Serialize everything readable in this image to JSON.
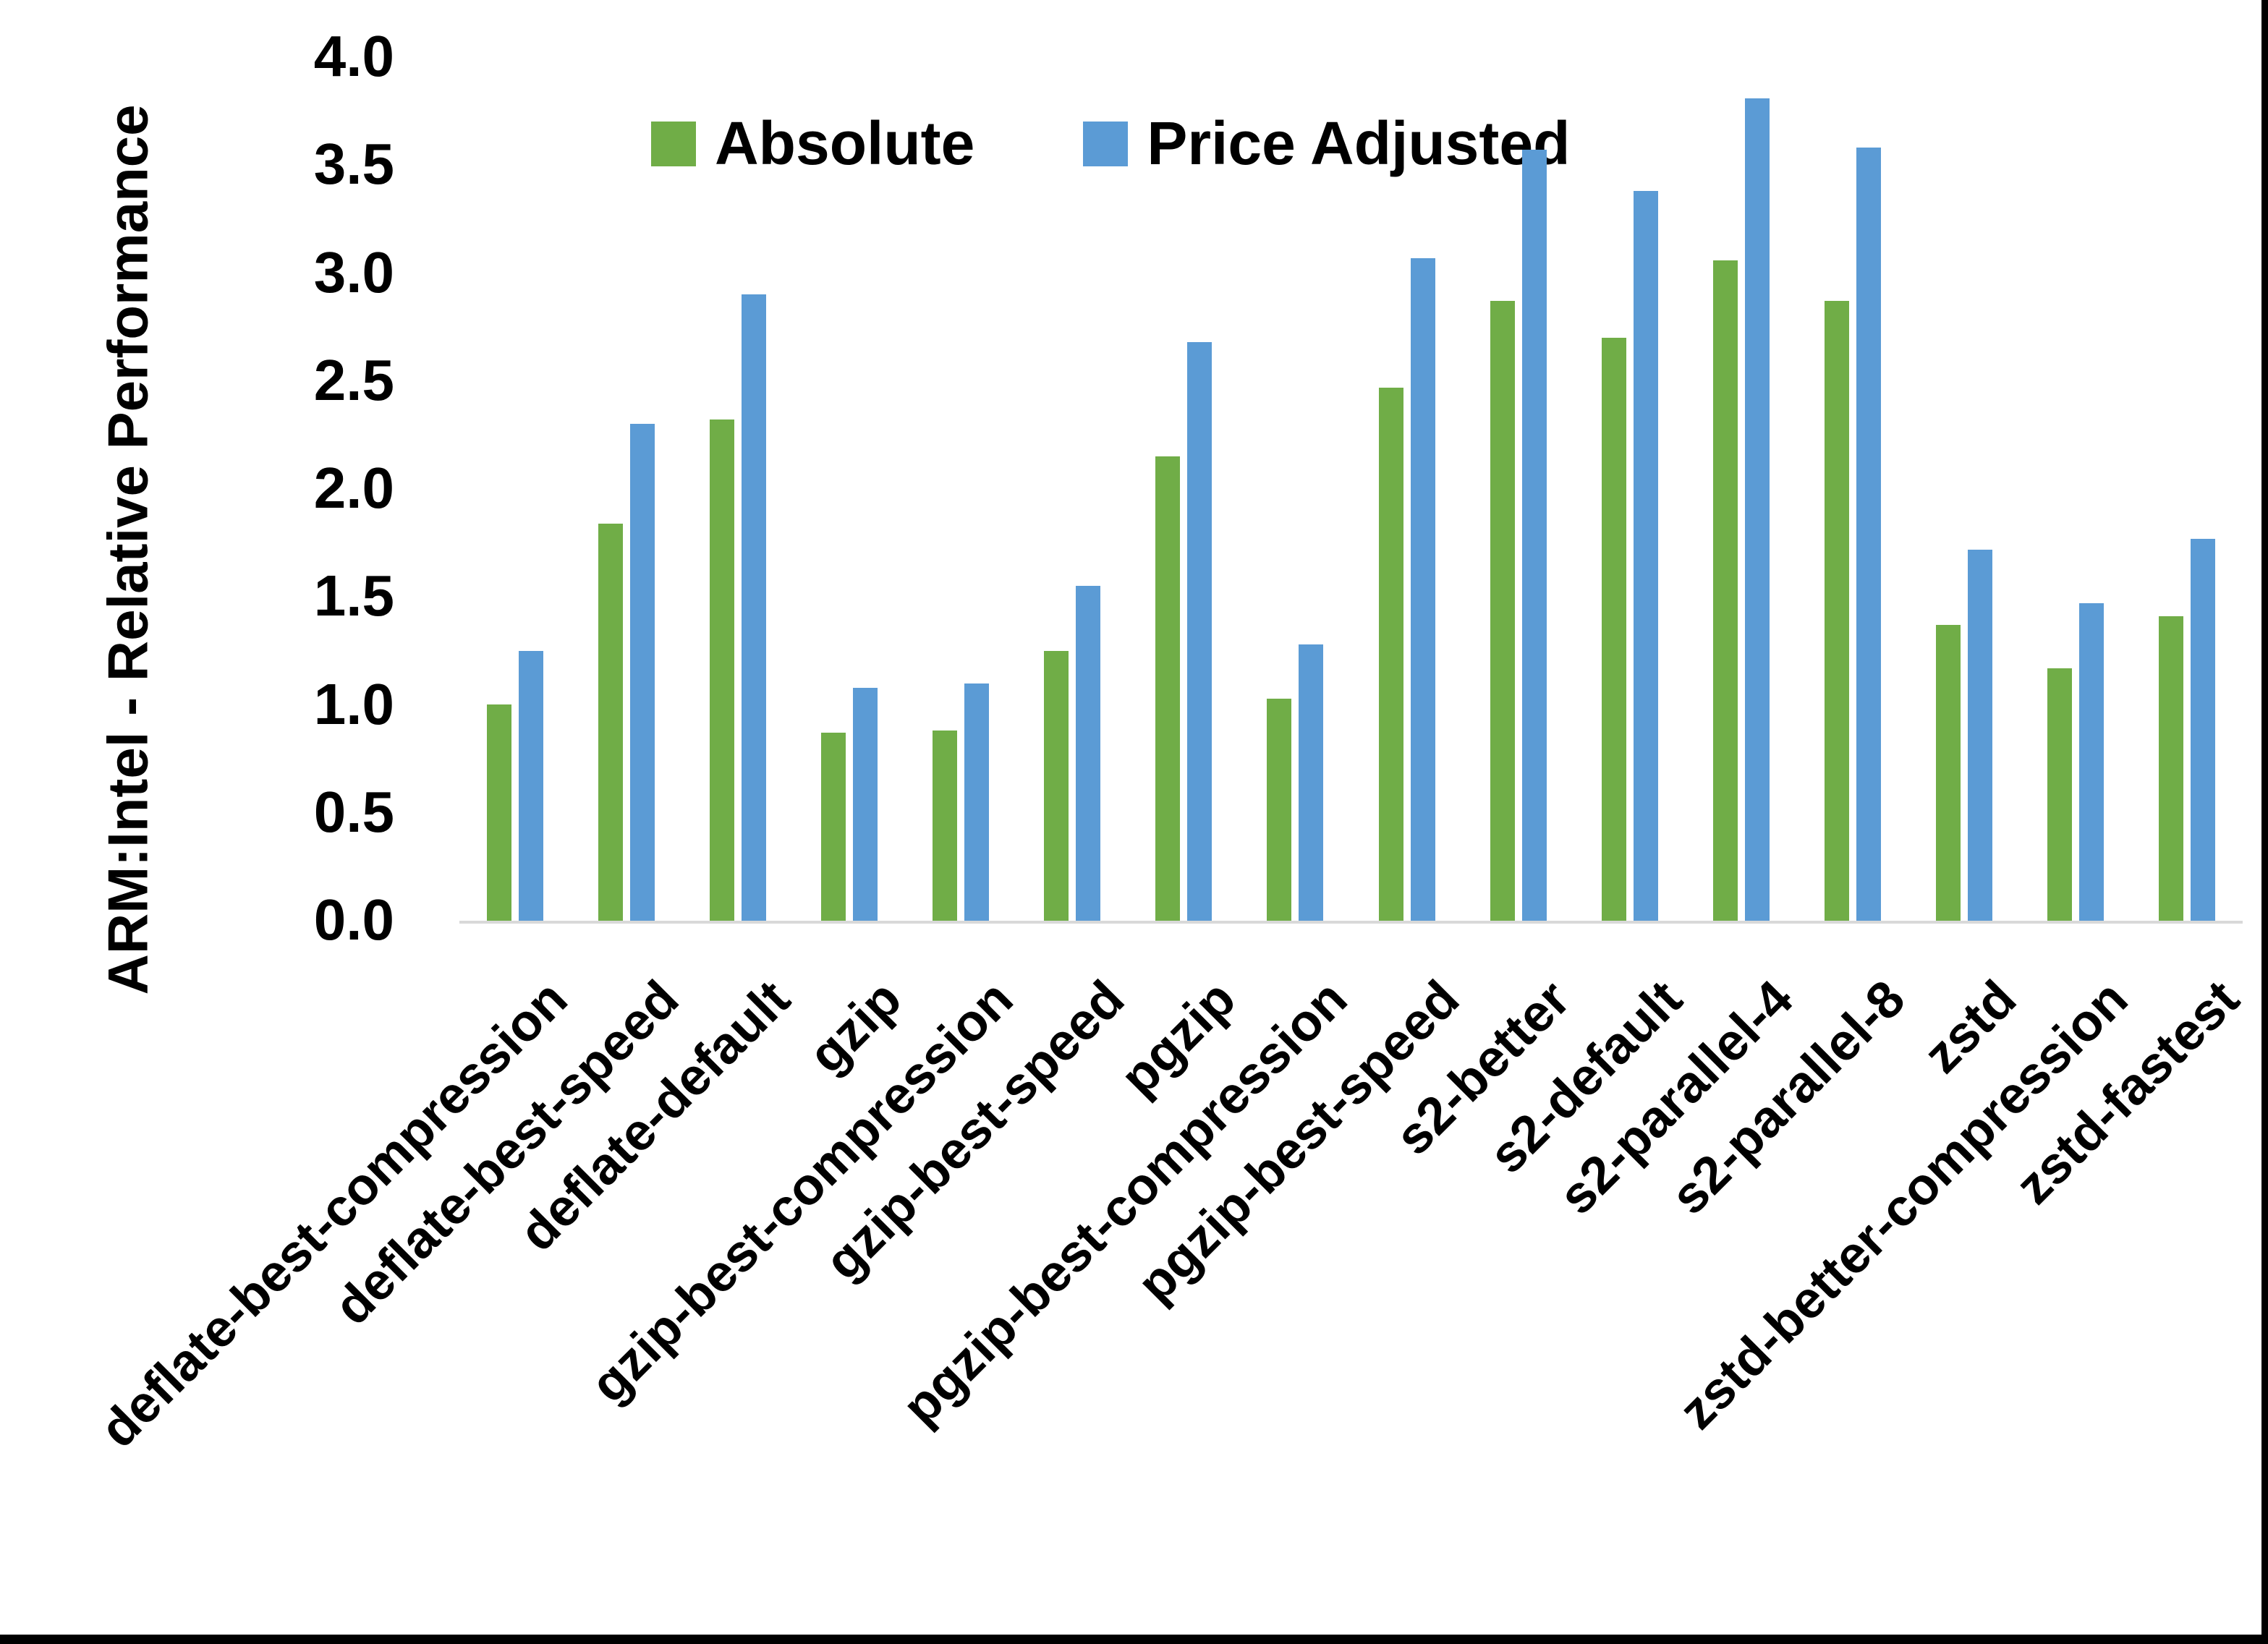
{
  "chart_data": {
    "type": "bar",
    "title": "",
    "ylabel": "ARM:Intel - Relative Performance",
    "xlabel": "",
    "ylim": [
      0.0,
      4.0
    ],
    "ytick_step": 0.5,
    "ytick_labels": [
      "0.0",
      "0.5",
      "1.0",
      "1.5",
      "2.0",
      "2.5",
      "3.0",
      "3.5",
      "4.0"
    ],
    "grid": false,
    "legend_position": "top-center",
    "baseline_color": "#D9D9D9",
    "categories": [
      "deflate-best-compression",
      "deflate-best-speed",
      "deflate-default",
      "gzip",
      "gzip-best-compression",
      "gzip-best-speed",
      "pgzip",
      "pgzip-best-compression",
      "pgzip-best-speed",
      "s2-better",
      "s2-default",
      "s2-parallel-4",
      "s2-parallel-8",
      "zstd",
      "zstd-better-compression",
      "zstd-fastest"
    ],
    "series": [
      {
        "name": "Absolute",
        "color": "#70AD47",
        "values": [
          1.0,
          1.84,
          2.32,
          0.87,
          0.88,
          1.25,
          2.15,
          1.03,
          2.47,
          2.87,
          2.7,
          3.06,
          2.87,
          1.37,
          1.17,
          1.41
        ]
      },
      {
        "name": "Price Adjusted",
        "color": "#5B9BD5",
        "values": [
          1.25,
          2.3,
          2.9,
          1.08,
          1.1,
          1.55,
          2.68,
          1.28,
          3.07,
          3.57,
          3.38,
          3.81,
          3.58,
          1.72,
          1.47,
          1.77
        ]
      }
    ]
  },
  "frame": {
    "right_border_color": "#000000",
    "bottom_border_color": "#000000"
  }
}
